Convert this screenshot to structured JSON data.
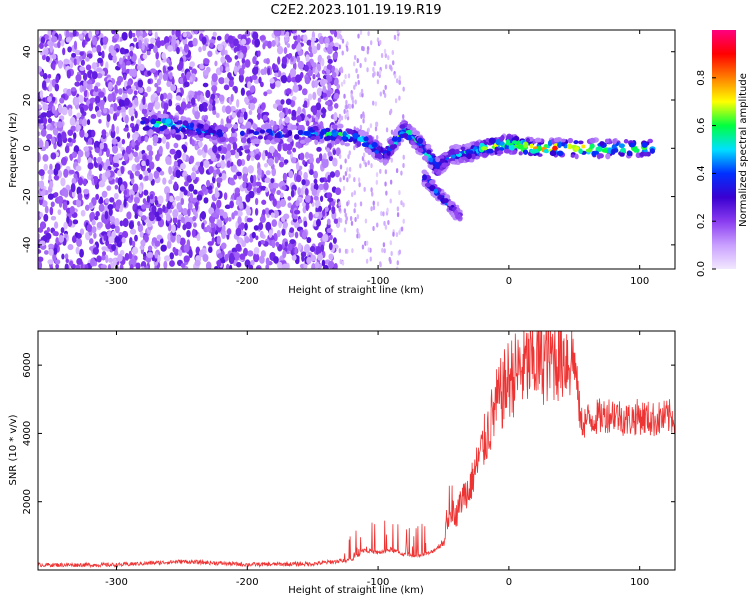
{
  "title": "C2E2.2023.101.19.19.R19",
  "colors": {
    "snr_line": "#ee3333",
    "spectrogram_scale": [
      "#f2e8ff",
      "#c9a0ff",
      "#8a3cf0",
      "#3a00d0",
      "#0030ff",
      "#00e0ff",
      "#00ff40",
      "#ffff00",
      "#ff8000",
      "#ff0000",
      "#ff0080"
    ]
  },
  "chart_data": [
    {
      "type": "heatmap",
      "title": "",
      "xlabel": "Height of straight line (km)",
      "ylabel": "Frequency (Hz)",
      "xlim": [
        -360,
        127
      ],
      "ylim": [
        -50,
        49
      ],
      "x_ticks": [
        -300,
        -200,
        -100,
        0,
        100
      ],
      "y_ticks": [
        -40,
        -20,
        0,
        20,
        40
      ],
      "colorbar": {
        "label": "Normalized spectral amplitude",
        "range": [
          0,
          1
        ],
        "ticks": [
          0.0,
          0.2,
          0.4,
          0.6,
          0.8
        ],
        "colormap": "rainbow (white-purple-blue-cyan-green-yellow-red-magenta)"
      },
      "ridge": [
        {
          "x": -280,
          "freq": 10,
          "amp": 0.55
        },
        {
          "x": -260,
          "freq": 10,
          "amp": 0.6
        },
        {
          "x": -240,
          "freq": 8,
          "amp": 0.45
        },
        {
          "x": -220,
          "freq": 6,
          "amp": 0.4
        },
        {
          "x": -160,
          "freq": 6,
          "amp": 0.45
        },
        {
          "x": -130,
          "freq": 6,
          "amp": 0.55
        },
        {
          "x": -110,
          "freq": 3,
          "amp": 0.5
        },
        {
          "x": -95,
          "freq": -3,
          "amp": 0.45
        },
        {
          "x": -80,
          "freq": 8,
          "amp": 0.6
        },
        {
          "x": -65,
          "freq": 0,
          "amp": 0.55
        },
        {
          "x": -55,
          "freq": -8,
          "amp": 0.5
        },
        {
          "x": -45,
          "freq": -3,
          "amp": 0.45
        },
        {
          "x": -30,
          "freq": -2,
          "amp": 0.5
        },
        {
          "x": -20,
          "freq": 0,
          "amp": 0.6
        },
        {
          "x": 0,
          "freq": 2,
          "amp": 0.7
        },
        {
          "x": 20,
          "freq": 0,
          "amp": 0.75
        },
        {
          "x": 50,
          "freq": 0,
          "amp": 0.8
        },
        {
          "x": 80,
          "freq": 0,
          "amp": 0.65
        },
        {
          "x": 110,
          "freq": 0,
          "amp": 0.6
        }
      ],
      "branch": [
        {
          "x": -65,
          "freq": -12,
          "amp": 0.5
        },
        {
          "x": -55,
          "freq": -18,
          "amp": 0.45
        },
        {
          "x": -45,
          "freq": -24,
          "amp": 0.35
        },
        {
          "x": -37,
          "freq": -28,
          "amp": 0.25
        }
      ]
    },
    {
      "type": "line",
      "title": "",
      "xlabel": "Height of straight line (km)",
      "ylabel": "SNR (10 * v/v)",
      "xlim": [
        -360,
        127
      ],
      "ylim": [
        0,
        7000
      ],
      "x_ticks": [
        -300,
        -200,
        -100,
        0,
        100
      ],
      "y_ticks": [
        2000,
        4000,
        6000
      ],
      "series": [
        {
          "x": [
            -360,
            -300,
            -250,
            -200,
            -150,
            -120,
            -110,
            -100,
            -90,
            -80,
            -70,
            -60,
            -50,
            -45,
            -40,
            -35,
            -30,
            -25,
            -20,
            -15,
            -10,
            -5,
            0,
            10,
            20,
            30,
            40,
            50,
            55,
            60,
            70,
            80,
            90,
            100,
            110,
            127
          ],
          "y": [
            150,
            150,
            250,
            160,
            180,
            300,
            600,
            500,
            600,
            450,
            400,
            500,
            800,
            1800,
            1600,
            2200,
            2400,
            3000,
            3600,
            4200,
            4800,
            5200,
            5600,
            5900,
            6100,
            6200,
            6300,
            6200,
            4300,
            4400,
            4500,
            4600,
            4400,
            4500,
            4400,
            4500
          ]
        }
      ]
    }
  ]
}
